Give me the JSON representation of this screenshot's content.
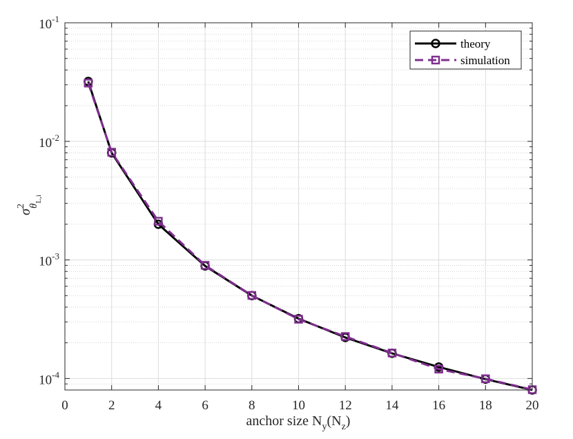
{
  "chart_data": {
    "type": "line",
    "title": "",
    "xlabel": "anchor size N_y(N_z)",
    "xlabel_main": "anchor size N",
    "xlabel_sub1": "y",
    "xlabel_mid": "(N",
    "xlabel_sub2": "z",
    "xlabel_end": ")",
    "ylabel": "σ²_θL,i",
    "ylabel_base": "σ",
    "ylabel_sup": "2",
    "ylabel_sub": "θ",
    "ylabel_subsub": "L,i",
    "xlim": [
      0,
      20
    ],
    "ylim": [
      8e-05,
      0.1
    ],
    "yscale": "log",
    "grid": true,
    "legend_position": "top-right",
    "x_ticks": [
      0,
      2,
      4,
      6,
      8,
      10,
      12,
      14,
      16,
      18,
      20
    ],
    "y_ticks": [
      {
        "value": 0.0001,
        "base": "10",
        "exp": "-4"
      },
      {
        "value": 0.001,
        "base": "10",
        "exp": "-3"
      },
      {
        "value": 0.01,
        "base": "10",
        "exp": "-2"
      },
      {
        "value": 0.1,
        "base": "10",
        "exp": "-1"
      }
    ],
    "series": [
      {
        "name": "theory",
        "color": "#000000",
        "marker": "circle",
        "line_style": "solid",
        "x": [
          1,
          2,
          4,
          6,
          8,
          10,
          12,
          14,
          16,
          18,
          20
        ],
        "y": [
          0.032,
          0.008,
          0.002,
          0.00089,
          0.0005,
          0.00032,
          0.000222,
          0.000163,
          0.000125,
          9.88e-05,
          8e-05
        ]
      },
      {
        "name": "simulation",
        "color": "#7E2F8E",
        "marker": "square",
        "line_style": "dashed",
        "x": [
          1,
          2,
          4,
          6,
          8,
          10,
          12,
          14,
          16,
          18,
          20
        ],
        "y": [
          0.031,
          0.0081,
          0.00212,
          0.0009,
          0.000502,
          0.000316,
          0.000226,
          0.000164,
          0.00012,
          9.95e-05,
          8.05e-05
        ]
      }
    ]
  }
}
